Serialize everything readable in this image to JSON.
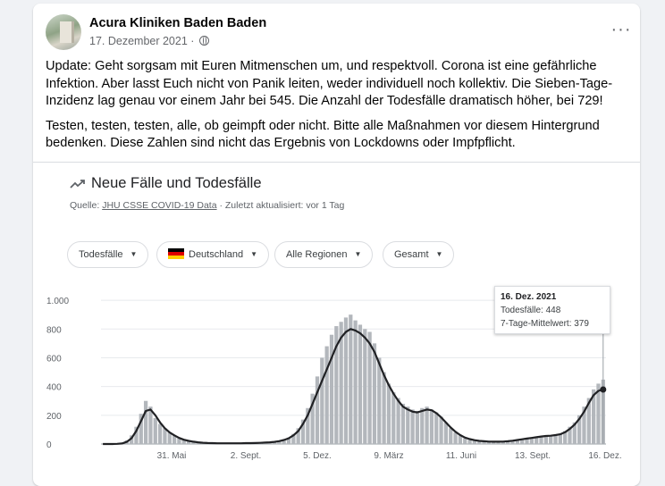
{
  "post": {
    "page_name": "Acura Kliniken Baden Baden",
    "date": "17. Dezember 2021",
    "audience_icon": "globe-icon",
    "more_icon": "more-dots-icon",
    "more_label": "···",
    "paragraphs": [
      "Update: Geht sorgsam mit Euren Mitmenschen um, und respektvoll. Corona ist eine gefährliche Infektion. Aber lasst Euch nicht von Panik leiten, weder individuell noch kollektiv. Die Sieben-Tage-Inzidenz lag genau vor einem Jahr bei 545. Die Anzahl der Todesfälle dramatisch höher, bei 729!",
      "Testen, testen, testen, alle, ob geimpft oder nicht. Bitte alle Maßnahmen vor diesem Hintergrund bedenken. Diese Zahlen sind nicht das Ergebnis von Lockdowns oder Impfpflicht."
    ]
  },
  "card": {
    "title": "Neue Fälle und Todesfälle",
    "title_icon": "trending-icon",
    "source_prefix": "Quelle: ",
    "source_link": "JHU CSSE COVID-19 Data",
    "source_suffix": " · Zuletzt aktualisiert: vor 1 Tag",
    "chips": [
      {
        "label": "Todesfälle"
      },
      {
        "label": "Deutschland",
        "flag": "germany-flag"
      },
      {
        "label": "Alle Regionen"
      },
      {
        "label": "Gesamt"
      }
    ],
    "chip_arrow": "▼",
    "tooltip": {
      "date": "16. Dez. 2021",
      "line1": "Todesfälle: 448",
      "line2": "7-Tage-Mittelwert: 379"
    }
  },
  "colors": {
    "bars": "#b3b7bc",
    "line": "#202124",
    "grid": "#e8eaed"
  },
  "chart_data": {
    "type": "bar",
    "title": "Neue Fälle und Todesfälle",
    "ylim": [
      0,
      1100
    ],
    "yticks": [
      0,
      200,
      400,
      600,
      800,
      1000
    ],
    "ytick_labels": [
      "0",
      "200",
      "400",
      "600",
      "800",
      "1.000"
    ],
    "xtick_labels": [
      "31. Mai",
      "2. Sept.",
      "5. Dez.",
      "9. März",
      "11. Juni",
      "13. Sept.",
      "16. Dez."
    ],
    "grid": true,
    "series": [
      {
        "name": "Todesfälle",
        "kind": "bar",
        "values": [
          0,
          0,
          0,
          2,
          8,
          25,
          60,
          120,
          210,
          300,
          260,
          180,
          140,
          110,
          80,
          60,
          40,
          30,
          20,
          15,
          10,
          8,
          6,
          5,
          5,
          4,
          4,
          5,
          4,
          5,
          6,
          6,
          7,
          8,
          10,
          12,
          15,
          20,
          30,
          45,
          70,
          110,
          170,
          250,
          350,
          470,
          600,
          680,
          760,
          820,
          850,
          880,
          900,
          860,
          830,
          800,
          780,
          700,
          600,
          500,
          420,
          360,
          320,
          280,
          260,
          240,
          230,
          250,
          260,
          240,
          220,
          190,
          150,
          110,
          80,
          60,
          40,
          30,
          25,
          20,
          18,
          16,
          15,
          16,
          18,
          20,
          25,
          30,
          35,
          40,
          45,
          50,
          55,
          60,
          60,
          65,
          70,
          90,
          120,
          150,
          200,
          260,
          320,
          380,
          420,
          448
        ]
      },
      {
        "name": "7-Tage-Mittelwert",
        "kind": "line",
        "values": [
          0,
          0,
          0,
          1,
          4,
          15,
          40,
          90,
          160,
          230,
          240,
          200,
          150,
          110,
          80,
          60,
          42,
          30,
          22,
          16,
          12,
          9,
          7,
          6,
          5,
          5,
          5,
          5,
          5,
          5,
          6,
          6,
          7,
          8,
          10,
          12,
          15,
          20,
          28,
          40,
          60,
          90,
          140,
          200,
          280,
          360,
          440,
          520,
          600,
          680,
          740,
          780,
          800,
          790,
          770,
          740,
          700,
          640,
          560,
          480,
          410,
          350,
          300,
          260,
          240,
          225,
          220,
          230,
          240,
          235,
          215,
          185,
          150,
          115,
          85,
          62,
          45,
          34,
          27,
          22,
          19,
          17,
          16,
          16,
          17,
          19,
          23,
          28,
          33,
          38,
          42,
          47,
          52,
          56,
          58,
          62,
          68,
          82,
          105,
          135,
          175,
          225,
          285,
          340,
          370,
          379
        ]
      }
    ]
  }
}
